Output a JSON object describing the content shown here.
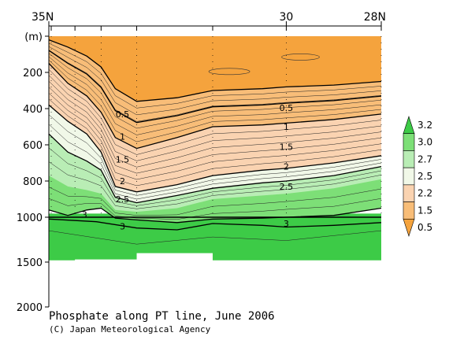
{
  "chart_data": {
    "type": "contour",
    "title": "Phosphate along PT line, June 2006",
    "credit": "(C) Japan Meteorological Agency",
    "x_axis": {
      "direction": "north-to-south",
      "lat_range": [
        35,
        28
      ],
      "ticks": [
        {
          "lat": 35,
          "label": "35N"
        },
        {
          "lat": 30,
          "label": "30"
        },
        {
          "lat": 28,
          "label": "28N"
        }
      ]
    },
    "y_axis": {
      "unit_label": "(m)",
      "inverted": true,
      "breaks": [
        {
          "depth": 0,
          "label": "(m)"
        },
        {
          "depth": 200,
          "label": "200"
        },
        {
          "depth": 400,
          "label": "400"
        },
        {
          "depth": 600,
          "label": "600"
        },
        {
          "depth": 800,
          "label": "800"
        },
        {
          "depth": 1000,
          "label": "1000"
        },
        {
          "depth": 1500,
          "label": "1500"
        },
        {
          "depth": 2000,
          "label": "2000"
        }
      ]
    },
    "stations_lat": [
      34.95,
      34.45,
      33.9,
      33.15,
      31.55,
      30.0,
      28.0
    ],
    "contour_labels": [
      {
        "level": "0.5",
        "lat": 33.45,
        "depth": 430
      },
      {
        "level": "0.5",
        "lat": 30.0,
        "depth": 395
      },
      {
        "level": "1",
        "lat": 33.45,
        "depth": 555
      },
      {
        "level": "1",
        "lat": 30.0,
        "depth": 500
      },
      {
        "level": "1.5",
        "lat": 33.45,
        "depth": 680
      },
      {
        "level": "1.5",
        "lat": 30.0,
        "depth": 610
      },
      {
        "level": "2",
        "lat": 33.45,
        "depth": 800
      },
      {
        "level": "2",
        "lat": 30.0,
        "depth": 720
      },
      {
        "level": "2.5",
        "lat": 33.45,
        "depth": 900
      },
      {
        "level": "2.5",
        "lat": 30.0,
        "depth": 830
      },
      {
        "level": "3",
        "lat": 34.25,
        "depth": 985
      },
      {
        "level": "3",
        "lat": 33.45,
        "depth": 1100
      },
      {
        "level": "3",
        "lat": 30.0,
        "depth": 1070
      }
    ],
    "colorbar": {
      "levels": [
        "0.5",
        "1.5",
        "2.2",
        "2.5",
        "2.7",
        "3.0",
        "3.2"
      ],
      "colors": [
        "#F5A33D",
        "#F8BD78",
        "#FAD3B1",
        "#F1F8E8",
        "#B9EDB5",
        "#7DDF77",
        "#3DCB47"
      ]
    }
  }
}
